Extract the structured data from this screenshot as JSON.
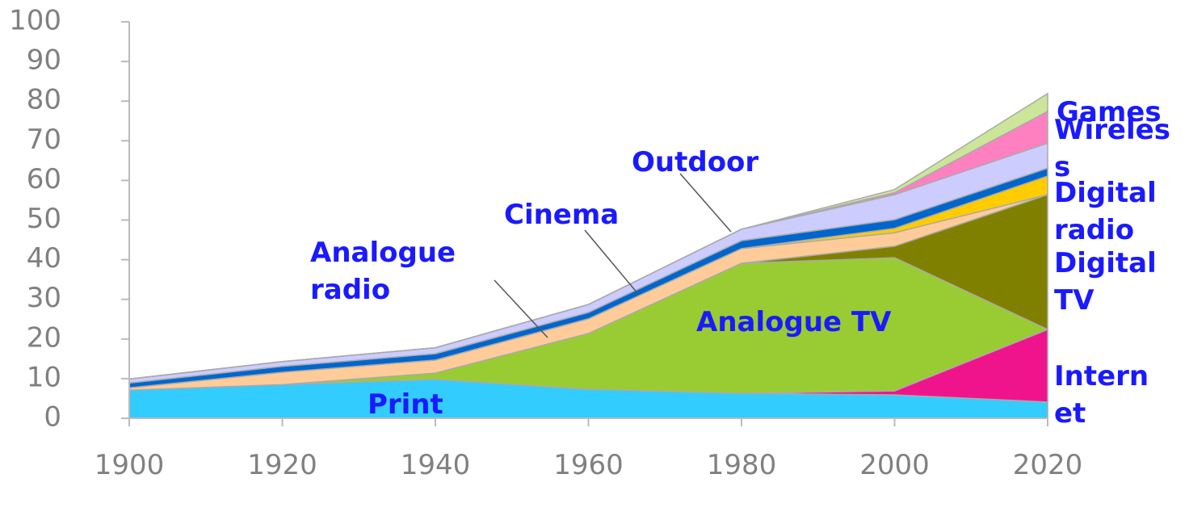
{
  "chart_data": {
    "type": "stacked_area",
    "x": [
      1900,
      1920,
      1940,
      1960,
      1980,
      2000,
      2020
    ],
    "xlim": [
      1900,
      2020
    ],
    "xticks": [
      1900,
      1920,
      1940,
      1960,
      1980,
      2000,
      2020
    ],
    "ylim": [
      0,
      100
    ],
    "yticks": [
      0,
      10,
      20,
      30,
      40,
      50,
      60,
      70,
      80,
      90,
      100
    ],
    "series": [
      {
        "name": "Print",
        "color": "#33ccff",
        "values": [
          7.1,
          8.5,
          9.8,
          7.3,
          6.3,
          5.9,
          4.1
        ]
      },
      {
        "name": "Internet",
        "color": "#f0148c",
        "values": [
          0,
          0,
          0,
          0,
          0,
          1.0,
          18.3
        ]
      },
      {
        "name": "Analogue TV",
        "color": "#99cc33",
        "values": [
          0,
          0,
          1.6,
          14.1,
          32.8,
          33.6,
          0
        ]
      },
      {
        "name": "Digital TV",
        "color": "#808000",
        "values": [
          0,
          0,
          0,
          0,
          0,
          2.9,
          34.0
        ]
      },
      {
        "name": "Analogue radio",
        "color": "#ffcc99",
        "values": [
          0.6,
          3.1,
          3.3,
          3.7,
          3.7,
          3.4,
          0
        ]
      },
      {
        "name": "Digital radio",
        "color": "#ffcc00",
        "values": [
          0,
          0,
          0,
          0,
          0,
          1.1,
          4.7
        ]
      },
      {
        "name": "Cinema",
        "color": "#0066cc",
        "values": [
          1.2,
          1.5,
          1.6,
          1.6,
          2.0,
          2.2,
          2.0
        ]
      },
      {
        "name": "Outdoor",
        "color": "#ccccff",
        "values": [
          1.0,
          1.2,
          1.5,
          2.0,
          2.9,
          6.3,
          6.3
        ]
      },
      {
        "name": "Wireless",
        "color": "#ff80c0",
        "values": [
          0,
          0,
          0,
          0,
          0,
          0.5,
          8.0
        ]
      },
      {
        "name": "Games",
        "color": "#cce699",
        "values": [
          0,
          0,
          0,
          0,
          0,
          0.8,
          4.5
        ]
      }
    ]
  }
}
